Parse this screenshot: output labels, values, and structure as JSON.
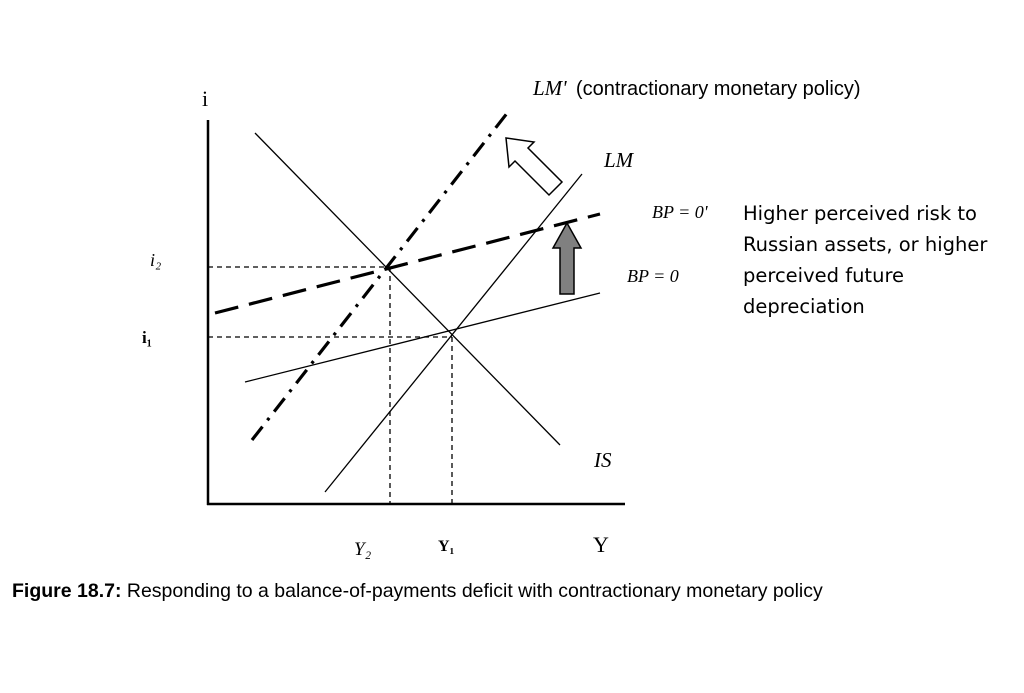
{
  "diagram": {
    "axes": {
      "y_label": "i",
      "x_label": "Y",
      "y_ticks": [
        "i₂",
        "i₁"
      ],
      "x_ticks": [
        "Y₂",
        "Y₁"
      ]
    },
    "curves": {
      "lm_prime": {
        "name": "LM'",
        "note": "(contractionary monetary policy)"
      },
      "lm": "LM",
      "bp_new": "BP = 0'",
      "bp": "BP = 0",
      "is": "IS"
    },
    "annotation": "Higher perceived risk to Russian assets, or higher perceived future depreciation",
    "colors": {
      "ink": "#000000",
      "shift_arrow_fill": "#808080",
      "lm_arrow_fill": "#ffffff"
    }
  },
  "caption": {
    "label": "Figure 18.7:",
    "text": " Responding to a balance-of-payments deficit with contractionary monetary policy"
  }
}
